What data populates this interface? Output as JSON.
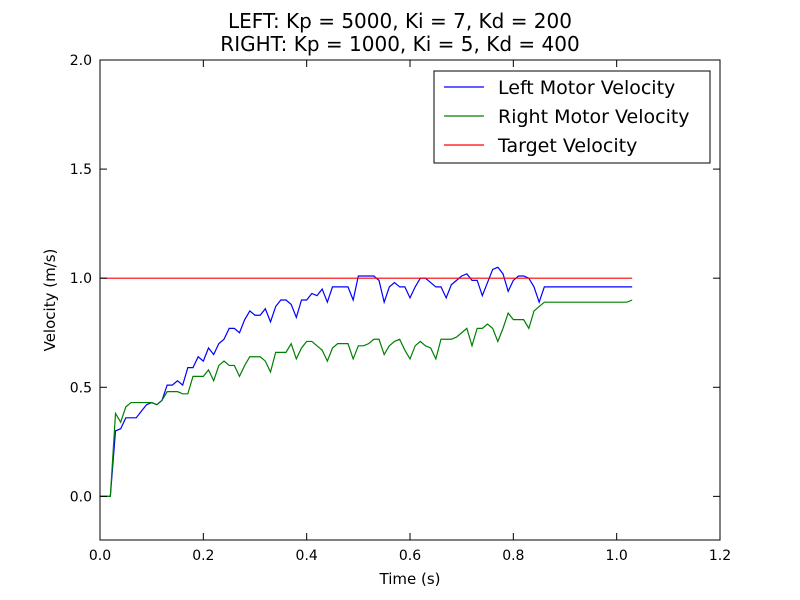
{
  "chart_data": {
    "type": "line",
    "title": "LEFT: Kp = 5000, Ki = 7, Kd = 200",
    "subtitle": "RIGHT: Kp = 1000, Ki = 5, Kd = 400",
    "xlabel": "Time (s)",
    "ylabel": "Velocity (m/s)",
    "xlim": [
      0.0,
      1.2
    ],
    "ylim": [
      -0.2,
      2.0
    ],
    "xticks": [
      "0.0",
      "0.2",
      "0.4",
      "0.6",
      "0.8",
      "1.0",
      "1.2"
    ],
    "yticks": [
      "0.0",
      "0.5",
      "1.0",
      "1.5",
      "2.0"
    ],
    "grid": false,
    "legend_position": "top-right",
    "series": [
      {
        "name": "Left Motor Velocity",
        "color": "#0000ff",
        "x": [
          0.0,
          0.02,
          0.03,
          0.04,
          0.05,
          0.06,
          0.07,
          0.08,
          0.09,
          0.1,
          0.11,
          0.12,
          0.13,
          0.14,
          0.15,
          0.16,
          0.17,
          0.18,
          0.19,
          0.2,
          0.21,
          0.22,
          0.23,
          0.24,
          0.25,
          0.26,
          0.27,
          0.28,
          0.29,
          0.3,
          0.31,
          0.32,
          0.33,
          0.34,
          0.35,
          0.36,
          0.37,
          0.38,
          0.39,
          0.4,
          0.41,
          0.42,
          0.43,
          0.44,
          0.45,
          0.46,
          0.47,
          0.48,
          0.49,
          0.5,
          0.51,
          0.52,
          0.53,
          0.54,
          0.55,
          0.56,
          0.57,
          0.58,
          0.59,
          0.6,
          0.61,
          0.62,
          0.63,
          0.64,
          0.65,
          0.66,
          0.67,
          0.68,
          0.69,
          0.7,
          0.71,
          0.72,
          0.73,
          0.74,
          0.75,
          0.76,
          0.77,
          0.78,
          0.79,
          0.8,
          0.81,
          0.82,
          0.83,
          0.84,
          0.85,
          0.86,
          0.87,
          0.88,
          0.89,
          0.9,
          0.91,
          0.92,
          0.93,
          0.94,
          0.95,
          0.96,
          0.97,
          0.98,
          0.99,
          1.0,
          1.01,
          1.02,
          1.03
        ],
        "values": [
          0.0,
          0.0,
          0.3,
          0.31,
          0.36,
          0.36,
          0.36,
          0.39,
          0.42,
          0.43,
          0.42,
          0.44,
          0.51,
          0.51,
          0.53,
          0.51,
          0.59,
          0.59,
          0.64,
          0.62,
          0.68,
          0.65,
          0.7,
          0.72,
          0.77,
          0.77,
          0.75,
          0.81,
          0.85,
          0.83,
          0.83,
          0.86,
          0.8,
          0.87,
          0.9,
          0.9,
          0.88,
          0.82,
          0.9,
          0.9,
          0.93,
          0.92,
          0.95,
          0.89,
          0.96,
          0.96,
          0.96,
          0.96,
          0.9,
          1.01,
          1.01,
          1.01,
          1.01,
          0.99,
          0.89,
          0.96,
          0.98,
          0.96,
          0.96,
          0.91,
          0.96,
          1.0,
          1.0,
          0.98,
          0.96,
          0.96,
          0.91,
          0.97,
          0.99,
          1.01,
          1.02,
          0.99,
          0.99,
          0.92,
          0.98,
          1.04,
          1.05,
          1.02,
          0.94,
          0.99,
          1.01,
          1.01,
          1.0,
          0.96,
          0.89,
          0.96,
          0.96,
          0.96,
          0.96,
          0.96,
          0.96,
          0.96,
          0.96,
          0.96,
          0.96,
          0.96,
          0.96,
          0.96,
          0.96,
          0.96,
          0.96,
          0.96,
          0.96
        ]
      },
      {
        "name": "Right Motor Velocity",
        "color": "#008000",
        "x": [
          0.0,
          0.02,
          0.03,
          0.04,
          0.05,
          0.06,
          0.07,
          0.08,
          0.09,
          0.1,
          0.11,
          0.12,
          0.13,
          0.14,
          0.15,
          0.16,
          0.17,
          0.18,
          0.19,
          0.2,
          0.21,
          0.22,
          0.23,
          0.24,
          0.25,
          0.26,
          0.27,
          0.28,
          0.29,
          0.3,
          0.31,
          0.32,
          0.33,
          0.34,
          0.35,
          0.36,
          0.37,
          0.38,
          0.39,
          0.4,
          0.41,
          0.42,
          0.43,
          0.44,
          0.45,
          0.46,
          0.47,
          0.48,
          0.49,
          0.5,
          0.51,
          0.52,
          0.53,
          0.54,
          0.55,
          0.56,
          0.57,
          0.58,
          0.59,
          0.6,
          0.61,
          0.62,
          0.63,
          0.64,
          0.65,
          0.66,
          0.67,
          0.68,
          0.69,
          0.7,
          0.71,
          0.72,
          0.73,
          0.74,
          0.75,
          0.76,
          0.77,
          0.78,
          0.79,
          0.8,
          0.81,
          0.82,
          0.83,
          0.84,
          0.85,
          0.86,
          0.87,
          0.88,
          0.89,
          0.9,
          0.91,
          0.92,
          0.93,
          0.94,
          0.95,
          0.96,
          0.97,
          0.98,
          0.99,
          1.0,
          1.01,
          1.02,
          1.03
        ],
        "values": [
          0.0,
          0.0,
          0.38,
          0.34,
          0.41,
          0.43,
          0.43,
          0.43,
          0.43,
          0.43,
          0.42,
          0.44,
          0.48,
          0.48,
          0.48,
          0.47,
          0.47,
          0.55,
          0.55,
          0.55,
          0.58,
          0.53,
          0.6,
          0.62,
          0.6,
          0.6,
          0.55,
          0.6,
          0.64,
          0.64,
          0.64,
          0.62,
          0.57,
          0.66,
          0.66,
          0.66,
          0.7,
          0.63,
          0.68,
          0.71,
          0.71,
          0.69,
          0.67,
          0.62,
          0.68,
          0.7,
          0.7,
          0.7,
          0.63,
          0.69,
          0.69,
          0.7,
          0.72,
          0.72,
          0.65,
          0.69,
          0.71,
          0.72,
          0.67,
          0.63,
          0.69,
          0.71,
          0.69,
          0.68,
          0.63,
          0.72,
          0.72,
          0.72,
          0.73,
          0.75,
          0.77,
          0.69,
          0.77,
          0.77,
          0.79,
          0.77,
          0.71,
          0.77,
          0.84,
          0.81,
          0.81,
          0.81,
          0.77,
          0.85,
          0.87,
          0.89,
          0.89,
          0.89,
          0.89,
          0.89,
          0.89,
          0.89,
          0.89,
          0.89,
          0.89,
          0.89,
          0.89,
          0.89,
          0.89,
          0.89,
          0.89,
          0.89,
          0.9
        ]
      },
      {
        "name": "Target Velocity",
        "color": "#ff0000",
        "x": [
          0.0,
          1.03
        ],
        "values": [
          1.0,
          1.0
        ]
      }
    ]
  }
}
